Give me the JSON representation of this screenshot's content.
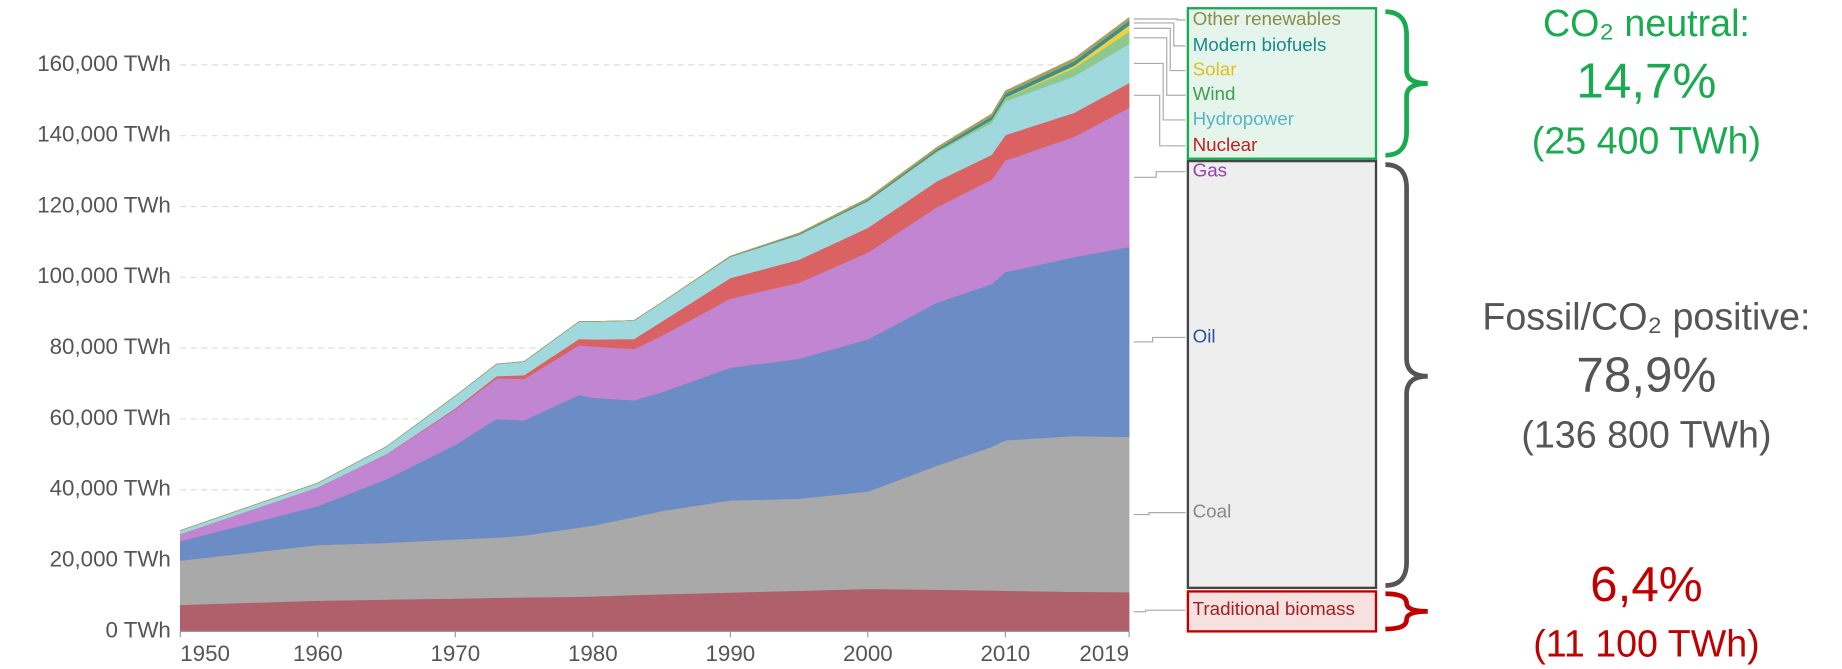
{
  "chart_data": {
    "type": "stacked-area",
    "x": [
      1950,
      1960,
      1965,
      1970,
      1973,
      1975,
      1979,
      1980,
      1983,
      1985,
      1990,
      1995,
      2000,
      2005,
      2009,
      2010,
      2015,
      2019
    ],
    "xlim": [
      1950,
      2019
    ],
    "xticks": [
      1950,
      1960,
      1970,
      1980,
      1990,
      2000,
      2010,
      2019
    ],
    "ylim": [
      0,
      175000
    ],
    "yticks": [
      {
        "value": 0,
        "label": "0 TWh"
      },
      {
        "value": 20000,
        "label": "20,000 TWh"
      },
      {
        "value": 40000,
        "label": "40,000 TWh"
      },
      {
        "value": 60000,
        "label": "60,000 TWh"
      },
      {
        "value": 80000,
        "label": "80,000 TWh"
      },
      {
        "value": 100000,
        "label": "100,000 TWh"
      },
      {
        "value": 120000,
        "label": "120,000 TWh"
      },
      {
        "value": 140000,
        "label": "140,000 TWh"
      },
      {
        "value": 160000,
        "label": "160,000 TWh"
      }
    ],
    "grid": true,
    "series": [
      {
        "name": "Traditional biomass",
        "color": "#b0606a",
        "label_color": "#a52020",
        "values": [
          7500,
          8700,
          9000,
          9300,
          9500,
          9600,
          9800,
          9900,
          10300,
          10500,
          11000,
          11500,
          12000,
          11800,
          11600,
          11500,
          11200,
          11100
        ]
      },
      {
        "name": "Coal",
        "color": "#a9a9a9",
        "label_color": "#888888",
        "values": [
          12500,
          15700,
          16000,
          16700,
          17000,
          17500,
          19500,
          20000,
          22000,
          23500,
          26000,
          26000,
          27500,
          35000,
          40500,
          42500,
          44000,
          43800
        ]
      },
      {
        "name": "Oil",
        "color": "#6b8cc4",
        "label_color": "#2a50a0",
        "values": [
          5500,
          11000,
          18000,
          26700,
          33500,
          32500,
          37500,
          36100,
          33000,
          33500,
          37500,
          39500,
          43000,
          46000,
          46000,
          47500,
          50500,
          53700
        ]
      },
      {
        "name": "Gas",
        "color": "#c285d1",
        "label_color": "#9a40b0",
        "values": [
          2000,
          5300,
          7000,
          10000,
          11500,
          11700,
          14000,
          14500,
          14500,
          16000,
          19500,
          21500,
          24500,
          27000,
          29500,
          31500,
          34000,
          39300
        ]
      },
      {
        "name": "Nuclear",
        "color": "#da6262",
        "label_color": "#c02020",
        "values": [
          0,
          0,
          100,
          300,
          600,
          1100,
          1800,
          2000,
          2800,
          4000,
          5800,
          6500,
          7000,
          7300,
          7000,
          7200,
          6800,
          7000
        ]
      },
      {
        "name": "Hydropower",
        "color": "#a0d9dd",
        "label_color": "#5ab4c6",
        "values": [
          1000,
          1200,
          2100,
          3500,
          3400,
          3800,
          4900,
          5000,
          5200,
          5400,
          6000,
          7000,
          7500,
          8200,
          9000,
          9500,
          10300,
          11000
        ]
      },
      {
        "name": "Wind",
        "color": "#8fc88f",
        "label_color": "#3f9f50",
        "values": [
          0,
          0,
          0,
          0,
          0,
          0,
          0,
          0,
          0,
          0,
          10,
          30,
          100,
          300,
          800,
          1000,
          2300,
          3500
        ]
      },
      {
        "name": "Solar",
        "color": "#f0d040",
        "label_color": "#e0c020",
        "values": [
          0,
          0,
          0,
          0,
          0,
          0,
          0,
          0,
          0,
          0,
          0,
          0,
          0,
          10,
          50,
          100,
          700,
          1800
        ]
      },
      {
        "name": "Modern biofuels",
        "color": "#3a9090",
        "label_color": "#1a8a8a",
        "values": [
          0,
          0,
          0,
          0,
          0,
          0,
          0,
          0,
          0,
          0,
          100,
          200,
          300,
          500,
          1000,
          1100,
          1200,
          1300
        ]
      },
      {
        "name": "Other renewables",
        "color": "#a8a060",
        "label_color": "#8a8a4a",
        "values": [
          0,
          0,
          0,
          0,
          0,
          0,
          0,
          0,
          0,
          0,
          100,
          300,
          500,
          600,
          700,
          750,
          850,
          900
        ]
      }
    ],
    "groups": [
      {
        "title": "CO₂ neutral:",
        "share": "14,7%",
        "energy": "(25 400 TWh)",
        "color": "#1aaa50"
      },
      {
        "title": "Fossil/CO₂ positive:",
        "share": "78,9%",
        "energy": "(136 800 TWh)",
        "color": "#555555"
      },
      {
        "share": "6,4%",
        "energy": "(11 100 TWh)",
        "color": "#c00000"
      }
    ]
  }
}
